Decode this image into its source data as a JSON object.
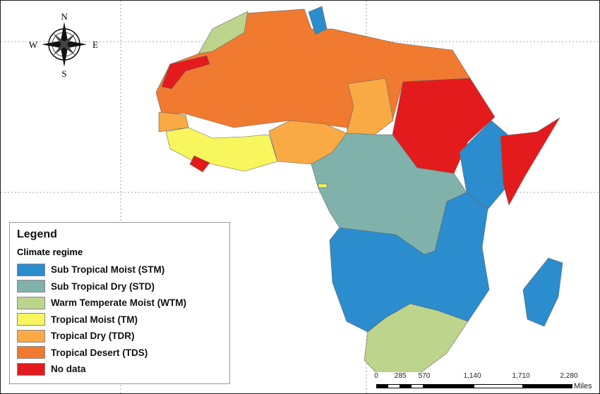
{
  "compass": {
    "n": "N",
    "s": "S",
    "e": "E",
    "w": "W"
  },
  "legend": {
    "title": "Legend",
    "subtitle": "Climate regime",
    "items": [
      {
        "label": "Sub Tropical Moist (STM)",
        "color": "#2b8cce"
      },
      {
        "label": "Sub Tropical Dry (STD)",
        "color": "#80b2ab"
      },
      {
        "label": "Warm Temperate Moist (WTM)",
        "color": "#bcd48b"
      },
      {
        "label": "Tropical Moist (TM)",
        "color": "#f7f65c"
      },
      {
        "label": "Tropical Dry (TDR)",
        "color": "#f9aa45"
      },
      {
        "label": "Tropical Desert (TDS)",
        "color": "#f07a2f"
      },
      {
        "label": "No data",
        "color": "#e31b1c"
      }
    ]
  },
  "scale_bar": {
    "ticks": [
      "0",
      "285",
      "570",
      "1,140",
      "1,710",
      "2,280"
    ],
    "units": "Miles"
  }
}
